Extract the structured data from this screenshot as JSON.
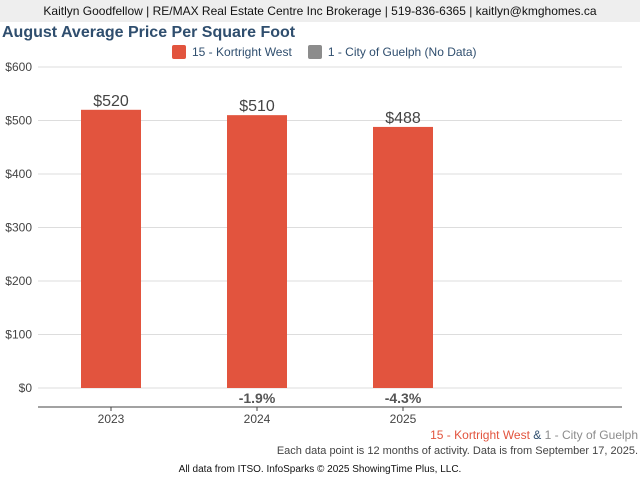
{
  "header": {
    "contact": "Kaitlyn Goodfellow | RE/MAX Real Estate Centre Inc Brokerage | 519-836-6365 | kaitlyn@kmghomes.ca"
  },
  "colors": {
    "primary": "#e2543e",
    "secondary": "#8c8c8c",
    "title": "#2f4e6e",
    "change_text": "#555555"
  },
  "legend": {
    "items": [
      {
        "label": "15 - Kortright West",
        "color": "#e2543e"
      },
      {
        "label": "1 - City of Guelph (No Data)",
        "color": "#8c8c8c"
      }
    ]
  },
  "chart_data": {
    "type": "bar",
    "title": "August Average Price Per Square Foot",
    "categories": [
      "2023",
      "2024",
      "2025"
    ],
    "series": [
      {
        "name": "15 - Kortright West",
        "values": [
          520,
          510,
          488
        ],
        "value_labels": [
          "$520",
          "$510",
          "$488"
        ],
        "changes": [
          "",
          "-1.9%",
          "-4.3%"
        ]
      }
    ],
    "ylim": [
      0,
      600
    ],
    "yticks": [
      0,
      100,
      200,
      300,
      400,
      500,
      600
    ],
    "ytick_labels": [
      "$0",
      "$100",
      "$200",
      "$300",
      "$400",
      "$500",
      "$600"
    ],
    "xlabel": "",
    "ylabel": "",
    "grid": true
  },
  "footer": {
    "legend_primary": "15 - Kortright West",
    "legend_join": " & ",
    "legend_secondary": "1 - City of Guelph",
    "note": "Each data point is 12 months of activity. Data is from September 17, 2025.",
    "credit": "All data from ITSO. InfoSparks © 2025 ShowingTime Plus, LLC."
  }
}
